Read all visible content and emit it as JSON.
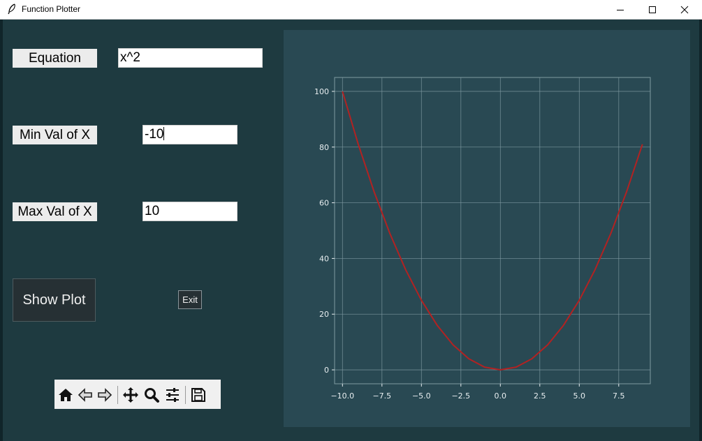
{
  "window": {
    "title": "Function Plotter",
    "icon": "feather-icon"
  },
  "form": {
    "equation_label": "Equation",
    "equation_value": "x^2",
    "min_label": "Min Val of X",
    "min_value": "-10",
    "max_label": "Max Val of X",
    "max_value": "10",
    "show_plot_label": "Show Plot",
    "exit_label": "Exit"
  },
  "toolbar": {
    "buttons": [
      "home-icon",
      "back-arrow-icon",
      "forward-arrow-icon",
      "pan-icon",
      "zoom-icon",
      "configure-subplots-icon",
      "save-icon"
    ]
  },
  "colors": {
    "background": "#1e3a40",
    "plot_background": "#294953",
    "line": "#b22222",
    "grid": "#7f9aa2"
  },
  "chart_data": {
    "type": "line",
    "title": "",
    "xlabel": "",
    "ylabel": "",
    "xlim": [
      -10.5,
      9.5
    ],
    "ylim": [
      -5,
      105
    ],
    "xticks": [
      "−10.0",
      "−7.5",
      "−5.0",
      "−2.5",
      "0.0",
      "2.5",
      "5.0",
      "7.5"
    ],
    "yticks": [
      "0",
      "20",
      "40",
      "60",
      "80",
      "100"
    ],
    "grid": true,
    "series": [
      {
        "x": [
          -10,
          -9,
          -8,
          -7,
          -6,
          -5,
          -4,
          -3,
          -2,
          -1,
          0,
          1,
          2,
          3,
          4,
          5,
          6,
          7,
          8,
          9
        ],
        "values": [
          100,
          81,
          64,
          49,
          36,
          25,
          16,
          9,
          4,
          1,
          0,
          1,
          4,
          9,
          16,
          25,
          36,
          49,
          64,
          81
        ]
      }
    ]
  }
}
